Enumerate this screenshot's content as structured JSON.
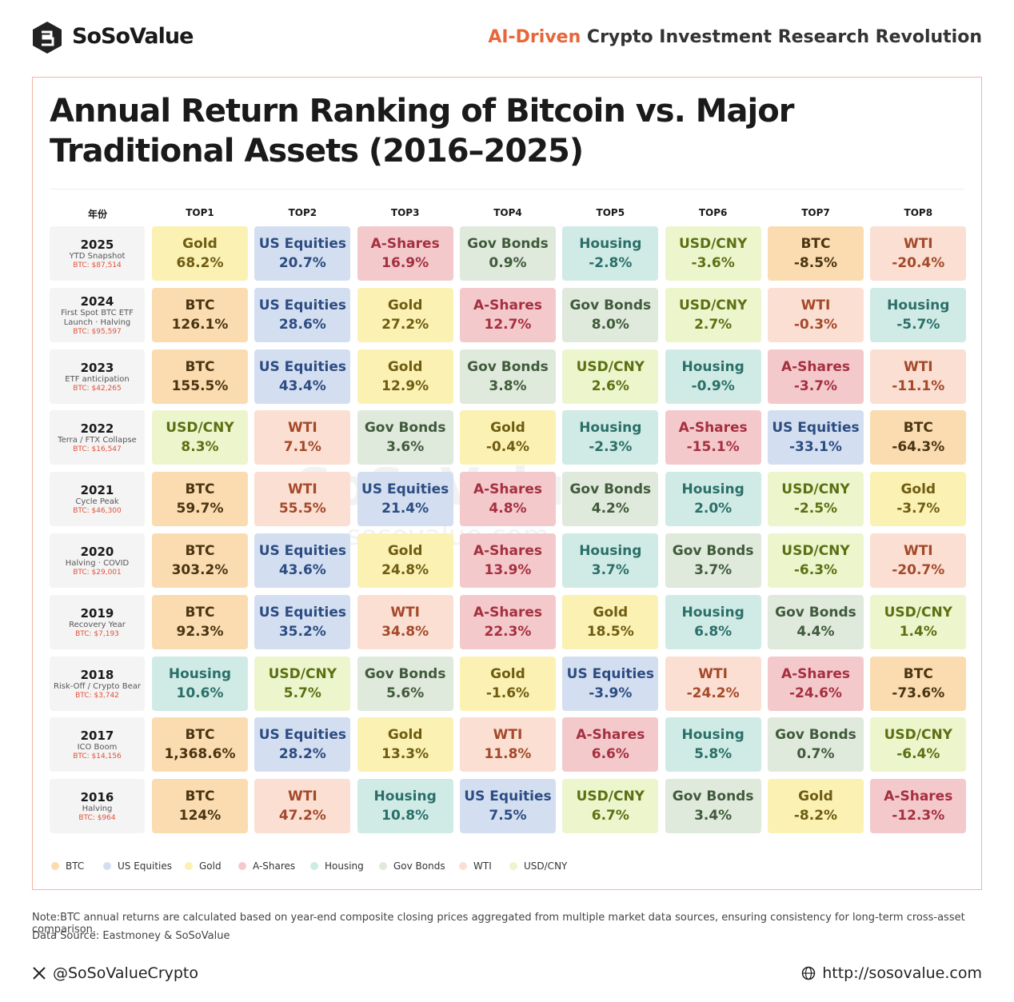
{
  "header": {
    "brand": "SoSoValue",
    "tagline_highlight": "AI-Driven",
    "tagline": "Crypto Investment Research Revolution"
  },
  "title": "Annual Return Ranking of Bitcoin vs. Major Traditional Assets (2016–2025)",
  "watermark": {
    "brand": "SoSoValue",
    "url": "sosovalue.com"
  },
  "table": {
    "columns": [
      "年份",
      "TOP1",
      "TOP2",
      "TOP3",
      "TOP4",
      "TOP5",
      "TOP6",
      "TOP7",
      "TOP8"
    ],
    "rows": [
      {
        "year": "2025",
        "note": "YTD Snapshot",
        "btc_price": "BTC: $87,514",
        "cells": [
          {
            "asset": "Gold",
            "value": "68.2%"
          },
          {
            "asset": "US Equities",
            "value": "20.7%"
          },
          {
            "asset": "A-Shares",
            "value": "16.9%"
          },
          {
            "asset": "Gov Bonds",
            "value": "0.9%"
          },
          {
            "asset": "Housing",
            "value": "-2.8%"
          },
          {
            "asset": "USD/CNY",
            "value": "-3.6%"
          },
          {
            "asset": "BTC",
            "value": "-8.5%"
          },
          {
            "asset": "WTI",
            "value": "-20.4%"
          }
        ]
      },
      {
        "year": "2024",
        "note": "First Spot BTC ETF Launch · Halving",
        "btc_price": "BTC: $95,597",
        "cells": [
          {
            "asset": "BTC",
            "value": "126.1%"
          },
          {
            "asset": "US Equities",
            "value": "28.6%"
          },
          {
            "asset": "Gold",
            "value": "27.2%"
          },
          {
            "asset": "A-Shares",
            "value": "12.7%"
          },
          {
            "asset": "Gov Bonds",
            "value": "8.0%"
          },
          {
            "asset": "USD/CNY",
            "value": "2.7%"
          },
          {
            "asset": "WTI",
            "value": "-0.3%"
          },
          {
            "asset": "Housing",
            "value": "-5.7%"
          }
        ]
      },
      {
        "year": "2023",
        "note": "ETF anticipation",
        "btc_price": "BTC: $42,265",
        "cells": [
          {
            "asset": "BTC",
            "value": "155.5%"
          },
          {
            "asset": "US Equities",
            "value": "43.4%"
          },
          {
            "asset": "Gold",
            "value": "12.9%"
          },
          {
            "asset": "Gov Bonds",
            "value": "3.8%"
          },
          {
            "asset": "USD/CNY",
            "value": "2.6%"
          },
          {
            "asset": "Housing",
            "value": "-0.9%"
          },
          {
            "asset": "A-Shares",
            "value": "-3.7%"
          },
          {
            "asset": "WTI",
            "value": "-11.1%"
          }
        ]
      },
      {
        "year": "2022",
        "note": "Terra / FTX Collapse",
        "btc_price": "BTC: $16,547",
        "cells": [
          {
            "asset": "USD/CNY",
            "value": "8.3%"
          },
          {
            "asset": "WTI",
            "value": "7.1%"
          },
          {
            "asset": "Gov Bonds",
            "value": "3.6%"
          },
          {
            "asset": "Gold",
            "value": "-0.4%"
          },
          {
            "asset": "Housing",
            "value": "-2.3%"
          },
          {
            "asset": "A-Shares",
            "value": "-15.1%"
          },
          {
            "asset": "US Equities",
            "value": "-33.1%"
          },
          {
            "asset": "BTC",
            "value": "-64.3%"
          }
        ]
      },
      {
        "year": "2021",
        "note": "Cycle Peak",
        "btc_price": "BTC: $46,300",
        "cells": [
          {
            "asset": "BTC",
            "value": "59.7%"
          },
          {
            "asset": "WTI",
            "value": "55.5%"
          },
          {
            "asset": "US Equities",
            "value": "21.4%"
          },
          {
            "asset": "A-Shares",
            "value": "4.8%"
          },
          {
            "asset": "Gov Bonds",
            "value": "4.2%"
          },
          {
            "asset": "Housing",
            "value": "2.0%"
          },
          {
            "asset": "USD/CNY",
            "value": "-2.5%"
          },
          {
            "asset": "Gold",
            "value": "-3.7%"
          }
        ]
      },
      {
        "year": "2020",
        "note": "Halving · COVID",
        "btc_price": "BTC: $29,001",
        "cells": [
          {
            "asset": "BTC",
            "value": "303.2%"
          },
          {
            "asset": "US Equities",
            "value": "43.6%"
          },
          {
            "asset": "Gold",
            "value": "24.8%"
          },
          {
            "asset": "A-Shares",
            "value": "13.9%"
          },
          {
            "asset": "Housing",
            "value": "3.7%"
          },
          {
            "asset": "Gov Bonds",
            "value": "3.7%"
          },
          {
            "asset": "USD/CNY",
            "value": "-6.3%"
          },
          {
            "asset": "WTI",
            "value": "-20.7%"
          }
        ]
      },
      {
        "year": "2019",
        "note": "Recovery Year",
        "btc_price": "BTC: $7,193",
        "cells": [
          {
            "asset": "BTC",
            "value": "92.3%"
          },
          {
            "asset": "US Equities",
            "value": "35.2%"
          },
          {
            "asset": "WTI",
            "value": "34.8%"
          },
          {
            "asset": "A-Shares",
            "value": "22.3%"
          },
          {
            "asset": "Gold",
            "value": "18.5%"
          },
          {
            "asset": "Housing",
            "value": "6.8%"
          },
          {
            "asset": "Gov Bonds",
            "value": "4.4%"
          },
          {
            "asset": "USD/CNY",
            "value": "1.4%"
          }
        ]
      },
      {
        "year": "2018",
        "note": "Risk-Off / Crypto Bear",
        "btc_price": "BTC: $3,742",
        "cells": [
          {
            "asset": "Housing",
            "value": "10.6%"
          },
          {
            "asset": "USD/CNY",
            "value": "5.7%"
          },
          {
            "asset": "Gov Bonds",
            "value": "5.6%"
          },
          {
            "asset": "Gold",
            "value": "-1.6%"
          },
          {
            "asset": "US Equities",
            "value": "-3.9%"
          },
          {
            "asset": "WTI",
            "value": "-24.2%"
          },
          {
            "asset": "A-Shares",
            "value": "-24.6%"
          },
          {
            "asset": "BTC",
            "value": "-73.6%"
          }
        ]
      },
      {
        "year": "2017",
        "note": "ICO Boom",
        "btc_price": "BTC: $14,156",
        "cells": [
          {
            "asset": "BTC",
            "value": "1,368.6%"
          },
          {
            "asset": "US Equities",
            "value": "28.2%"
          },
          {
            "asset": "Gold",
            "value": "13.3%"
          },
          {
            "asset": "WTI",
            "value": "11.8%"
          },
          {
            "asset": "A-Shares",
            "value": "6.6%"
          },
          {
            "asset": "Housing",
            "value": "5.8%"
          },
          {
            "asset": "Gov Bonds",
            "value": "0.7%"
          },
          {
            "asset": "USD/CNY",
            "value": "-6.4%"
          }
        ]
      },
      {
        "year": "2016",
        "note": "Halving",
        "btc_price": "BTC: $964",
        "cells": [
          {
            "asset": "BTC",
            "value": "124%"
          },
          {
            "asset": "WTI",
            "value": "47.2%"
          },
          {
            "asset": "Housing",
            "value": "10.8%"
          },
          {
            "asset": "US Equities",
            "value": "7.5%"
          },
          {
            "asset": "USD/CNY",
            "value": "6.7%"
          },
          {
            "asset": "Gov Bonds",
            "value": "3.4%"
          },
          {
            "asset": "Gold",
            "value": "-8.2%"
          },
          {
            "asset": "A-Shares",
            "value": "-12.3%"
          }
        ]
      }
    ]
  },
  "legend": [
    {
      "name": "BTC",
      "color": "#fbdcb0",
      "text_color": "#4a3412"
    },
    {
      "name": "US Equities",
      "color": "#d3dff0",
      "text_color": "#2c4c82"
    },
    {
      "name": "Gold",
      "color": "#fbf1b3",
      "text_color": "#6e5c12"
    },
    {
      "name": "A-Shares",
      "color": "#f4c9cc",
      "text_color": "#a5303f"
    },
    {
      "name": "Housing",
      "color": "#d0ebe6",
      "text_color": "#2b6f68"
    },
    {
      "name": "Gov Bonds",
      "color": "#dfe9dc",
      "text_color": "#405a3b"
    },
    {
      "name": "WTI",
      "color": "#fbdfd2",
      "text_color": "#a4492a"
    },
    {
      "name": "USD/CNY",
      "color": "#edf5cd",
      "text_color": "#5b7012"
    }
  ],
  "footer": {
    "note": "Note:BTC annual returns are calculated based on year-end composite closing prices aggregated from multiple market data sources, ensuring consistency for long-term cross-asset comparison.",
    "source": "Data Source: Eastmoney & SoSoValue",
    "twitter": "@SoSoValueCrypto",
    "url": "http://sosovalue.com"
  }
}
